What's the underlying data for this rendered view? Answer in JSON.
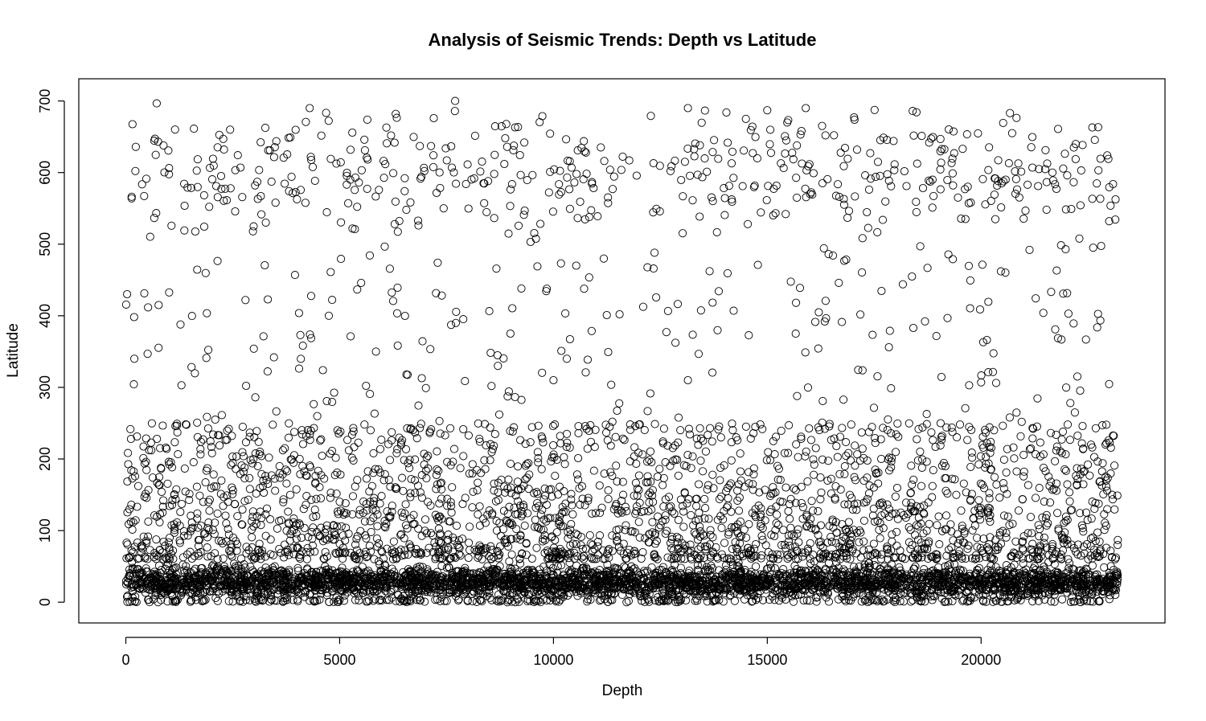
{
  "chart_data": {
    "type": "scatter",
    "title": "Analysis of Seismic Trends: Depth vs Latitude",
    "xlabel": "Depth",
    "ylabel": "Latitude",
    "xlim": [
      -1100,
      24300
    ],
    "ylim": [
      -29,
      731
    ],
    "x_ticks": [
      0,
      5000,
      10000,
      15000,
      20000
    ],
    "y_ticks": [
      0,
      100,
      200,
      300,
      400,
      500,
      600,
      700
    ],
    "marker": "open-circle",
    "marker_color": "#000000",
    "approx_point_count": 23200,
    "x_range": [
      0,
      23200
    ],
    "clusters": [
      {
        "name": "dense low band",
        "y_range": [
          0,
          60
        ],
        "share": 0.55
      },
      {
        "name": "moderate band",
        "y_range": [
          60,
          250
        ],
        "share": 0.33
      },
      {
        "name": "sparse mid band",
        "y_range": [
          250,
          500
        ],
        "share": 0.04
      },
      {
        "name": "upper band",
        "y_range": [
          500,
          700
        ],
        "share": 0.08
      }
    ],
    "notable_points": [
      {
        "x": 7700,
        "y": 700
      },
      {
        "x": 4300,
        "y": 690
      },
      {
        "x": 15900,
        "y": 690
      },
      {
        "x": 18400,
        "y": 686
      },
      {
        "x": 15000,
        "y": 687
      },
      {
        "x": 7200,
        "y": 676
      },
      {
        "x": 22600,
        "y": 663
      },
      {
        "x": 1150,
        "y": 660
      },
      {
        "x": 21800,
        "y": 661
      },
      {
        "x": 14500,
        "y": 675
      },
      {
        "x": 120,
        "y": 228
      },
      {
        "x": 200,
        "y": 340
      },
      {
        "x": 1300,
        "y": 303
      },
      {
        "x": 20000,
        "y": 307
      },
      {
        "x": 8700,
        "y": 330
      },
      {
        "x": 10000,
        "y": 310
      }
    ],
    "grid": false,
    "legend": "none"
  }
}
